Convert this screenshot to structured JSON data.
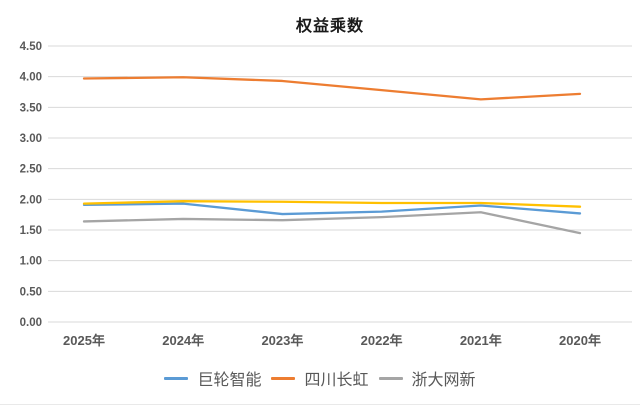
{
  "title": "权益乘数",
  "chart_data": {
    "type": "line",
    "title": "权益乘数",
    "categories": [
      "2025年",
      "2024年",
      "2023年",
      "2022年",
      "2021年",
      "2020年"
    ],
    "series": [
      {
        "name": "巨轮智能",
        "color": "#5B9BD5",
        "in_legend": true,
        "values": [
          1.91,
          1.93,
          1.76,
          1.8,
          1.9,
          1.77
        ]
      },
      {
        "name": "四川长虹",
        "color": "#ED7D31",
        "in_legend": true,
        "values": [
          3.97,
          3.99,
          3.93,
          3.78,
          3.63,
          3.72
        ]
      },
      {
        "name": "浙大网新",
        "color": "#A5A5A5",
        "in_legend": true,
        "values": [
          1.64,
          1.68,
          1.66,
          1.71,
          1.79,
          1.45
        ]
      },
      {
        "name": "",
        "color": "#FFC000",
        "in_legend": false,
        "values": [
          1.93,
          1.97,
          1.96,
          1.94,
          1.94,
          1.88
        ]
      }
    ],
    "ylim": [
      0,
      4.5
    ],
    "ytick_step": 0.5,
    "ytick_labels": [
      "0.00",
      "0.50",
      "1.00",
      "1.50",
      "2.00",
      "2.50",
      "3.00",
      "3.50",
      "4.00",
      "4.50"
    ],
    "xlabel": "",
    "ylabel": "",
    "grid": true,
    "legend_position": "bottom"
  },
  "colors": {
    "background": "#FFFFFF",
    "gridline": "#D9D9D9",
    "axis_text": "#595959",
    "title_text": "#1A1A1A",
    "legend_text": "#595959"
  }
}
